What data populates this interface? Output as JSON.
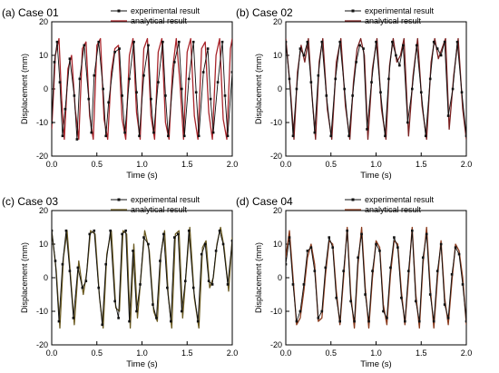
{
  "chart_data": [
    {
      "type": "line",
      "title": "(a) Case 01",
      "xlabel": "Time (s)",
      "ylabel": "Displacement (mm)",
      "xlim": [
        0,
        2.0
      ],
      "ylim": [
        -20,
        20
      ],
      "xticks": [
        "0.0",
        "0.5",
        "1.0",
        "1.5",
        "2.0"
      ],
      "yticks": [
        "20",
        "10",
        "0",
        "-10",
        "-20"
      ],
      "legend_position": "top-right",
      "series": [
        {
          "name": "experimental result",
          "color": "#111111",
          "marker": "square",
          "x": [
            0.0,
            0.03,
            0.06,
            0.09,
            0.12,
            0.15,
            0.2,
            0.25,
            0.28,
            0.31,
            0.36,
            0.41,
            0.44,
            0.47,
            0.52,
            0.57,
            0.6,
            0.63,
            0.7,
            0.75,
            0.78,
            0.81,
            0.86,
            0.91,
            0.94,
            0.97,
            1.02,
            1.07,
            1.1,
            1.13,
            1.18,
            1.23,
            1.26,
            1.29,
            1.36,
            1.41,
            1.44,
            1.47,
            1.52,
            1.57,
            1.6,
            1.63,
            1.68,
            1.73,
            1.76,
            1.79,
            1.84,
            1.89,
            1.92,
            1.95,
            2.0
          ],
          "y": [
            -10,
            8,
            14,
            2,
            -14,
            -6,
            9,
            -2,
            -15,
            3,
            13,
            -3,
            -13,
            4,
            14,
            0,
            -14,
            -4,
            11,
            12,
            -2,
            -13,
            3,
            14,
            -1,
            -14,
            4,
            13,
            -3,
            -13,
            2,
            14,
            -2,
            -14,
            8,
            14,
            0,
            -14,
            3,
            14,
            -1,
            -14,
            5,
            12,
            -3,
            -13,
            2,
            14,
            -2,
            -14,
            5
          ]
        },
        {
          "name": "analytical result",
          "color": "#a8242a",
          "x": [
            0.0,
            0.04,
            0.08,
            0.11,
            0.14,
            0.18,
            0.22,
            0.26,
            0.3,
            0.34,
            0.38,
            0.42,
            0.46,
            0.5,
            0.54,
            0.58,
            0.62,
            0.66,
            0.7,
            0.74,
            0.78,
            0.82,
            0.86,
            0.9,
            0.94,
            0.98,
            1.02,
            1.06,
            1.1,
            1.14,
            1.18,
            1.22,
            1.26,
            1.3,
            1.34,
            1.38,
            1.42,
            1.46,
            1.5,
            1.54,
            1.58,
            1.62,
            1.66,
            1.7,
            1.74,
            1.78,
            1.82,
            1.86,
            1.9,
            1.94,
            1.98,
            2.0
          ],
          "y": [
            -12,
            10,
            15,
            -3,
            -15,
            6,
            10,
            -6,
            -15,
            12,
            14,
            -8,
            -15,
            13,
            15,
            -9,
            -15,
            5,
            12,
            13,
            -9,
            -15,
            10,
            15,
            -7,
            -15,
            12,
            15,
            -8,
            -15,
            11,
            15,
            -10,
            -15,
            6,
            15,
            2,
            -15,
            11,
            15,
            -8,
            -15,
            12,
            14,
            -7,
            -15,
            10,
            15,
            -9,
            -15,
            12,
            15
          ]
        }
      ]
    },
    {
      "type": "line",
      "title": "(b) Case 02",
      "xlabel": "Time (s)",
      "ylabel": "Displacement (mm)",
      "xlim": [
        0,
        2.0
      ],
      "ylim": [
        -20,
        20
      ],
      "xticks": [
        "0.0",
        "0.5",
        "1.0",
        "1.5",
        "2.0"
      ],
      "yticks": [
        "20",
        "10",
        "0",
        "-10",
        "-20"
      ],
      "legend_position": "top-right",
      "series": [
        {
          "name": "experimental result",
          "color": "#111111",
          "marker": "square",
          "x": [
            0.0,
            0.04,
            0.08,
            0.12,
            0.16,
            0.2,
            0.24,
            0.28,
            0.32,
            0.36,
            0.4,
            0.45,
            0.5,
            0.55,
            0.6,
            0.65,
            0.7,
            0.74,
            0.78,
            0.82,
            0.86,
            0.9,
            0.95,
            1.0,
            1.05,
            1.1,
            1.14,
            1.18,
            1.22,
            1.26,
            1.3,
            1.35,
            1.4,
            1.45,
            1.5,
            1.55,
            1.6,
            1.64,
            1.68,
            1.72,
            1.76,
            1.8,
            1.85,
            1.9,
            1.95,
            2.0
          ],
          "y": [
            14,
            3,
            -14,
            0,
            12,
            10,
            14,
            2,
            -13,
            4,
            14,
            -2,
            -14,
            3,
            14,
            0,
            -14,
            -2,
            8,
            13,
            12,
            -12,
            2,
            14,
            -1,
            -14,
            3,
            14,
            10,
            7,
            13,
            -10,
            0,
            13,
            -1,
            -14,
            3,
            14,
            12,
            10,
            14,
            -8,
            0,
            14,
            -1,
            -14
          ]
        },
        {
          "name": "analytical result",
          "color": "#7a2020",
          "x": [
            0.0,
            0.05,
            0.09,
            0.13,
            0.17,
            0.21,
            0.25,
            0.29,
            0.33,
            0.37,
            0.41,
            0.46,
            0.51,
            0.56,
            0.61,
            0.66,
            0.71,
            0.75,
            0.79,
            0.83,
            0.87,
            0.91,
            0.96,
            1.01,
            1.06,
            1.11,
            1.15,
            1.19,
            1.23,
            1.27,
            1.31,
            1.36,
            1.41,
            1.46,
            1.51,
            1.56,
            1.61,
            1.65,
            1.69,
            1.73,
            1.77,
            1.81,
            1.86,
            1.91,
            1.96,
            2.0
          ],
          "y": [
            15,
            0,
            -15,
            5,
            13,
            8,
            15,
            -2,
            -15,
            8,
            15,
            -6,
            -15,
            8,
            15,
            -5,
            -15,
            2,
            12,
            15,
            10,
            -15,
            6,
            15,
            -6,
            -15,
            7,
            15,
            8,
            10,
            15,
            -14,
            4,
            15,
            -5,
            -15,
            8,
            15,
            9,
            12,
            15,
            -12,
            4,
            15,
            -6,
            -15
          ]
        }
      ]
    },
    {
      "type": "line",
      "title": "(c) Case 03",
      "xlabel": "Time (s)",
      "ylabel": "Displacement (mm)",
      "xlim": [
        0,
        2.0
      ],
      "ylim": [
        -20,
        20
      ],
      "xticks": [
        "0.0",
        "0.5",
        "1.0",
        "1.5",
        "2.0"
      ],
      "yticks": [
        "20",
        "10",
        "0",
        "-10",
        "-20"
      ],
      "legend_position": "top-right",
      "series": [
        {
          "name": "experimental result",
          "color": "#111111",
          "marker": "square",
          "x": [
            0.0,
            0.04,
            0.08,
            0.12,
            0.16,
            0.2,
            0.24,
            0.29,
            0.34,
            0.38,
            0.42,
            0.47,
            0.52,
            0.56,
            0.6,
            0.65,
            0.7,
            0.74,
            0.78,
            0.82,
            0.86,
            0.9,
            0.94,
            0.98,
            1.02,
            1.07,
            1.12,
            1.16,
            1.2,
            1.24,
            1.28,
            1.32,
            1.36,
            1.4,
            1.44,
            1.48,
            1.52,
            1.57,
            1.62,
            1.66,
            1.7,
            1.74,
            1.78,
            1.82,
            1.86,
            1.9,
            1.95,
            2.0
          ],
          "y": [
            14,
            5,
            -13,
            4,
            14,
            2,
            -12,
            3,
            -3,
            -1,
            13,
            14,
            -3,
            -14,
            4,
            14,
            -7,
            -12,
            13,
            14,
            -13,
            8,
            -10,
            -2,
            12,
            10,
            -8,
            -12,
            5,
            13,
            -3,
            -13,
            12,
            13,
            -10,
            -1,
            14,
            -3,
            -13,
            7,
            10,
            -1,
            -2,
            8,
            14,
            10,
            -2,
            11
          ]
        },
        {
          "name": "analytical result",
          "color": "#6b5a20",
          "x": [
            0.0,
            0.05,
            0.09,
            0.13,
            0.17,
            0.21,
            0.25,
            0.3,
            0.35,
            0.39,
            0.43,
            0.48,
            0.53,
            0.57,
            0.61,
            0.66,
            0.71,
            0.75,
            0.79,
            0.83,
            0.87,
            0.91,
            0.95,
            0.99,
            1.03,
            1.08,
            1.13,
            1.17,
            1.21,
            1.25,
            1.29,
            1.33,
            1.37,
            1.41,
            1.45,
            1.49,
            1.53,
            1.58,
            1.63,
            1.67,
            1.71,
            1.75,
            1.79,
            1.83,
            1.87,
            1.91,
            1.96,
            2.0
          ],
          "y": [
            14,
            2,
            -15,
            6,
            14,
            0,
            -14,
            5,
            -5,
            2,
            14,
            13,
            -6,
            -15,
            7,
            14,
            -9,
            -10,
            14,
            13,
            -15,
            10,
            -12,
            1,
            14,
            8,
            -10,
            -13,
            7,
            14,
            -5,
            -15,
            13,
            14,
            -12,
            2,
            15,
            -6,
            -15,
            9,
            11,
            -3,
            0,
            10,
            15,
            9,
            -4,
            12
          ]
        }
      ]
    },
    {
      "type": "line",
      "title": "(d) Case 04",
      "xlabel": "Time (s)",
      "ylabel": "Displacement (mm)",
      "xlim": [
        0,
        2.0
      ],
      "ylim": [
        -20,
        20
      ],
      "xticks": [
        "0.0",
        "0.5",
        "1.0",
        "1.5",
        "2.0"
      ],
      "yticks": [
        "20",
        "10",
        "0",
        "-10",
        "-20"
      ],
      "legend_position": "top-right",
      "series": [
        {
          "name": "experimental result",
          "color": "#111111",
          "marker": "square",
          "x": [
            0.0,
            0.04,
            0.08,
            0.12,
            0.16,
            0.2,
            0.24,
            0.28,
            0.32,
            0.36,
            0.4,
            0.44,
            0.48,
            0.52,
            0.56,
            0.6,
            0.64,
            0.68,
            0.72,
            0.76,
            0.8,
            0.84,
            0.88,
            0.92,
            0.96,
            1.0,
            1.04,
            1.08,
            1.12,
            1.16,
            1.2,
            1.24,
            1.28,
            1.32,
            1.36,
            1.4,
            1.44,
            1.48,
            1.52,
            1.56,
            1.6,
            1.64,
            1.68,
            1.72,
            1.76,
            1.8,
            1.84,
            1.88,
            1.92,
            1.96,
            2.0
          ],
          "y": [
            4,
            12,
            -2,
            -13,
            -10,
            -2,
            8,
            9,
            2,
            -12,
            -10,
            3,
            12,
            9,
            -6,
            -13,
            2,
            14,
            -7,
            -13,
            6,
            13,
            -5,
            -13,
            2,
            10,
            8,
            -10,
            -12,
            3,
            12,
            9,
            -6,
            -13,
            2,
            14,
            -7,
            -13,
            6,
            13,
            -5,
            -13,
            2,
            10,
            -8,
            -12,
            1,
            9,
            7,
            -2,
            -13
          ]
        },
        {
          "name": "analytical result",
          "color": "#8a3a1c",
          "x": [
            0.0,
            0.04,
            0.08,
            0.12,
            0.16,
            0.2,
            0.24,
            0.28,
            0.32,
            0.36,
            0.4,
            0.44,
            0.48,
            0.52,
            0.56,
            0.6,
            0.64,
            0.68,
            0.72,
            0.76,
            0.8,
            0.84,
            0.88,
            0.92,
            0.96,
            1.0,
            1.04,
            1.08,
            1.12,
            1.16,
            1.2,
            1.24,
            1.28,
            1.32,
            1.36,
            1.4,
            1.44,
            1.48,
            1.52,
            1.56,
            1.6,
            1.64,
            1.68,
            1.72,
            1.76,
            1.8,
            1.84,
            1.88,
            1.92,
            1.96,
            2.0
          ],
          "y": [
            6,
            14,
            0,
            -14,
            -12,
            -4,
            6,
            10,
            4,
            -13,
            -12,
            1,
            11,
            10,
            -4,
            -14,
            0,
            15,
            -5,
            -15,
            4,
            15,
            -3,
            -15,
            0,
            11,
            9,
            -8,
            -14,
            1,
            11,
            10,
            -4,
            -14,
            0,
            15,
            -5,
            -15,
            4,
            15,
            -3,
            -15,
            0,
            11,
            -6,
            -14,
            -1,
            10,
            8,
            0,
            -14
          ]
        }
      ]
    }
  ]
}
